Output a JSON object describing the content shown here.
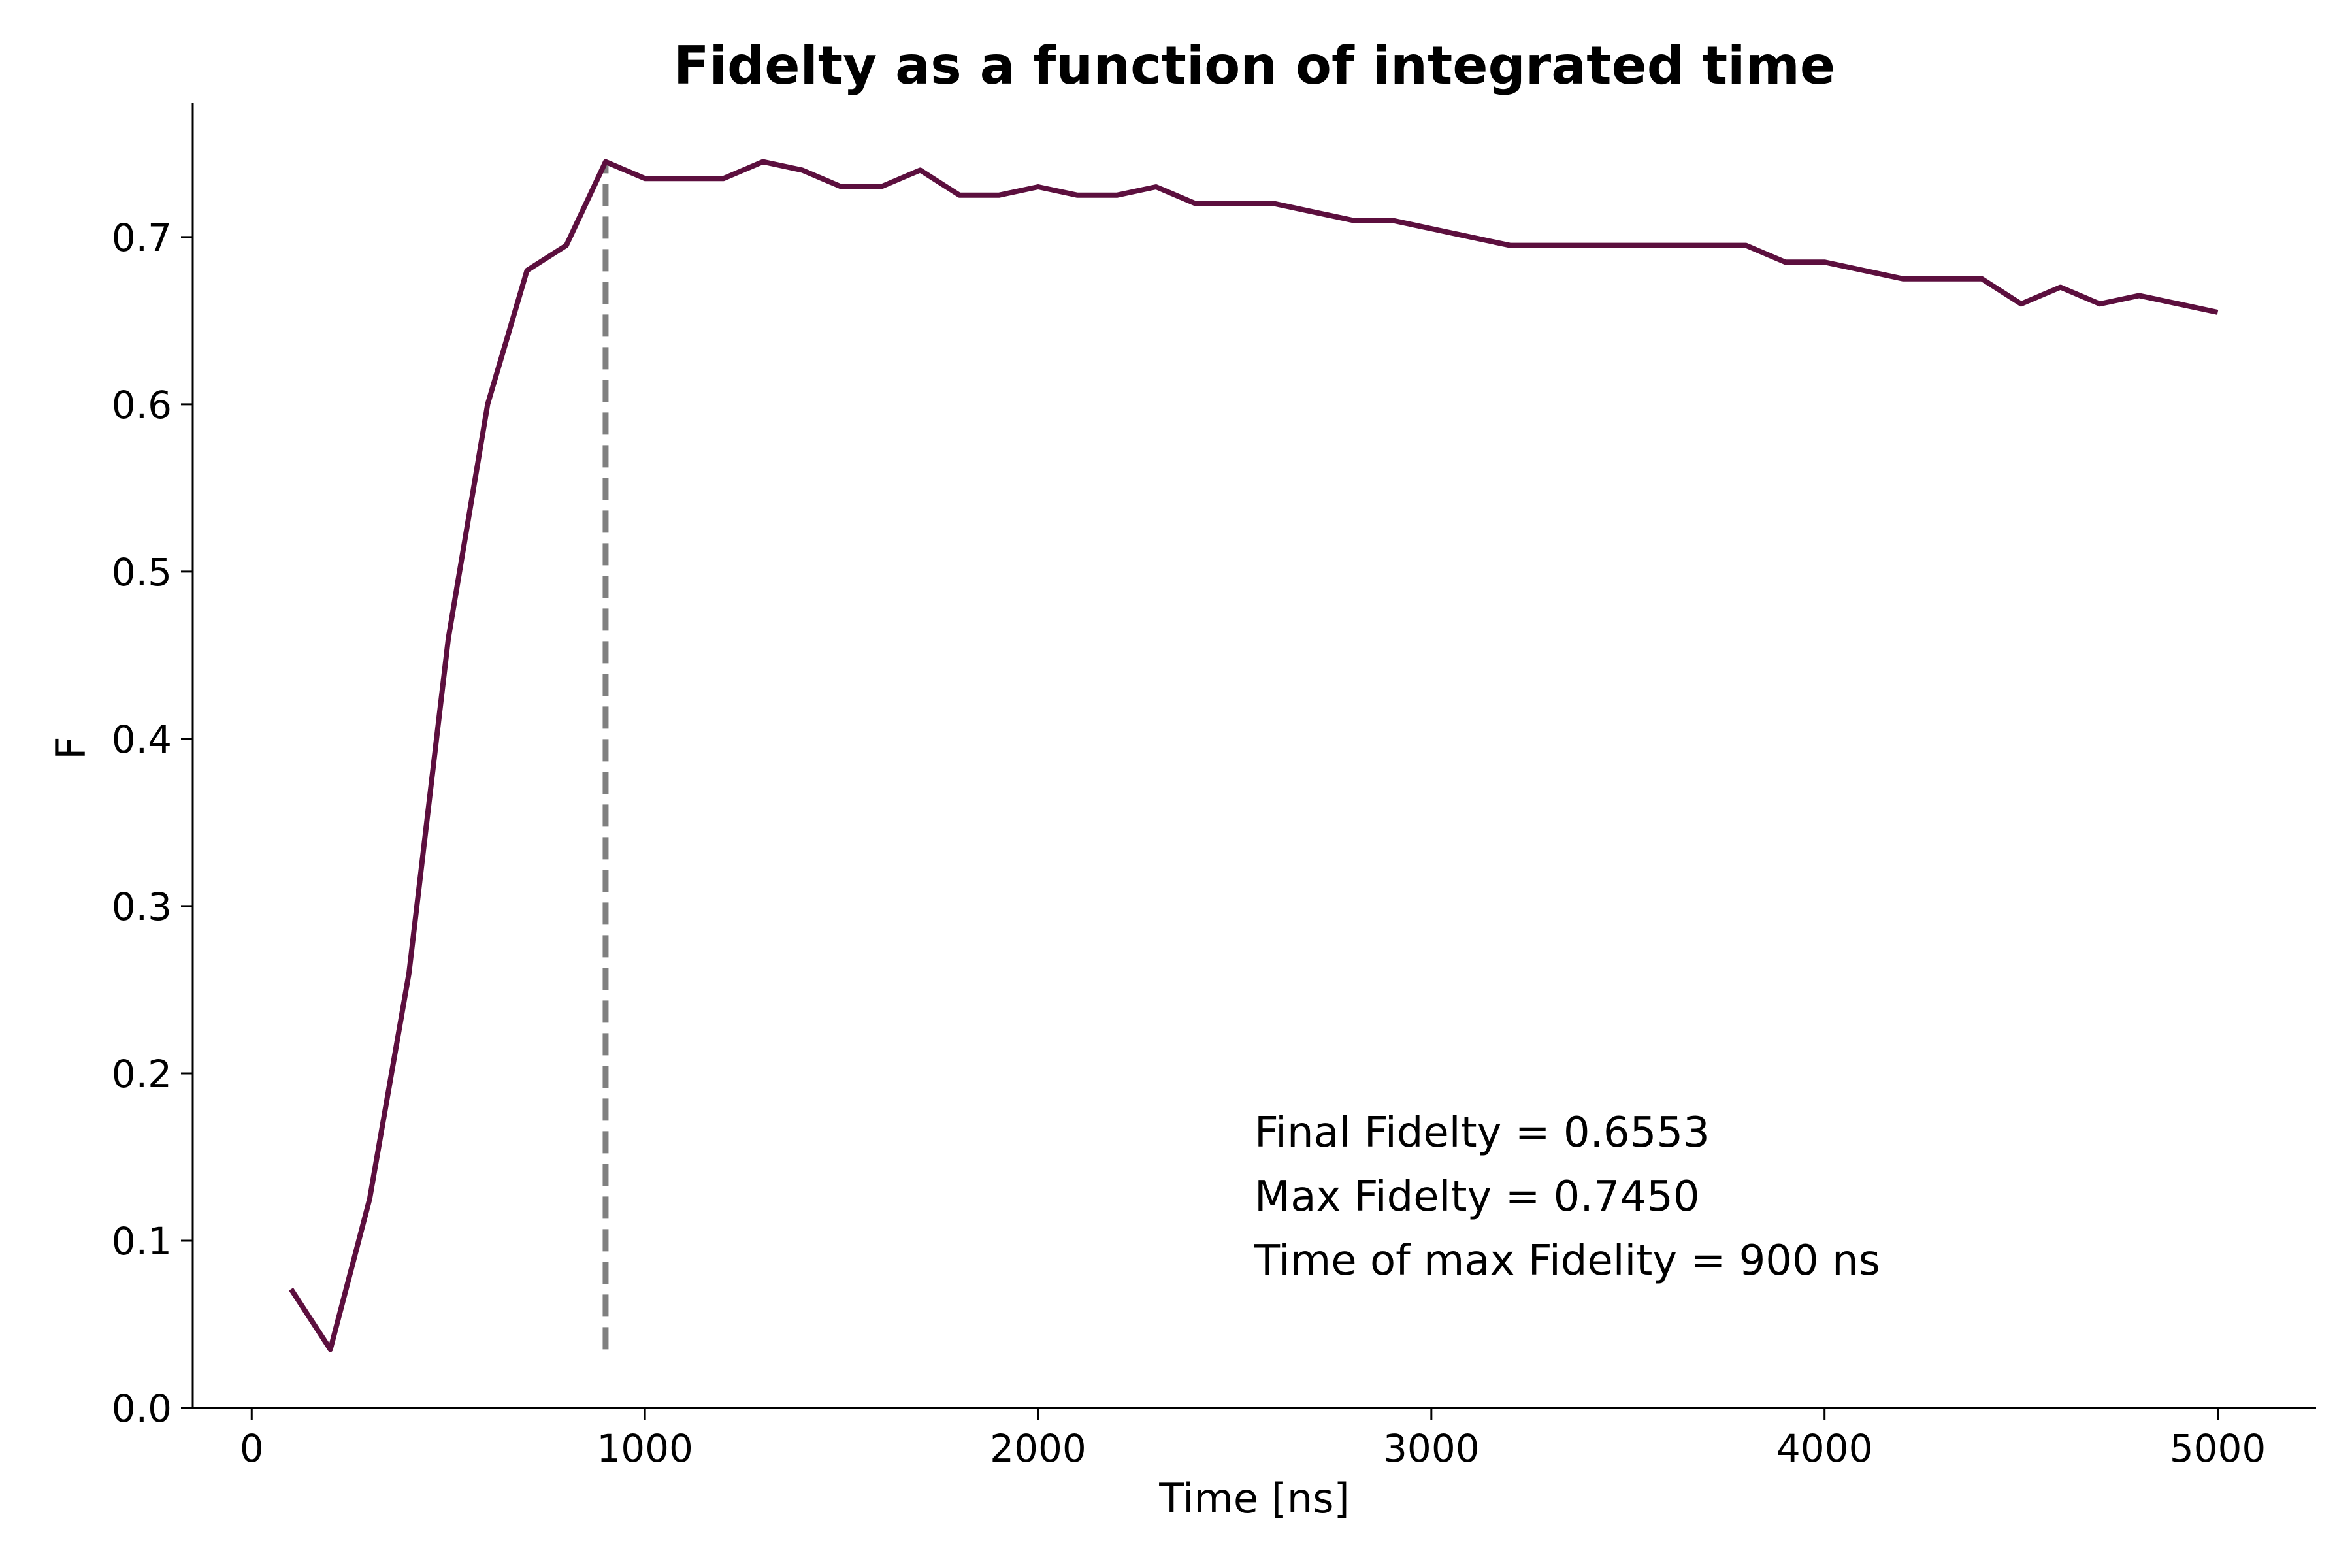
{
  "chart_data": {
    "type": "line",
    "title": "Fidelty as a function of integrated time",
    "xlabel": "Time  [ns]",
    "ylabel": "F",
    "xlim": [
      -150,
      5250
    ],
    "ylim": [
      0.0,
      0.78
    ],
    "xticks": [
      0,
      1000,
      2000,
      3000,
      4000,
      5000
    ],
    "yticks": [
      0.0,
      0.1,
      0.2,
      0.3,
      0.4,
      0.5,
      0.6,
      0.7
    ],
    "xtick_labels": [
      "0",
      "1000",
      "2000",
      "3000",
      "4000",
      "5000"
    ],
    "ytick_labels": [
      "0.0",
      "0.1",
      "0.2",
      "0.3",
      "0.4",
      "0.5",
      "0.6",
      "0.7"
    ],
    "grid": false,
    "line_color": "#5c0f3e",
    "vline": {
      "x": 900,
      "y_from": 0.035,
      "y_to": 0.745,
      "color": "#808080",
      "style": "dashed"
    },
    "annotations": [
      "Final Fidelty = 0.6553",
      "Max Fidelty = 0.7450",
      "Time of max Fidelity = 900 ns"
    ],
    "series": [
      {
        "x": [
          100,
          200,
          300,
          400,
          500,
          600,
          700,
          800,
          900,
          1000,
          1100,
          1200,
          1300,
          1400,
          1500,
          1600,
          1700,
          1800,
          1900,
          2000,
          2100,
          2200,
          2300,
          2400,
          2500,
          2600,
          2700,
          2800,
          2900,
          3000,
          3100,
          3200,
          3300,
          3400,
          3500,
          3600,
          3700,
          3800,
          3900,
          4000,
          4100,
          4200,
          4300,
          4400,
          4500,
          4600,
          4700,
          4800,
          4900,
          5000
        ],
        "values": [
          0.071,
          0.035,
          0.125,
          0.26,
          0.46,
          0.6,
          0.68,
          0.695,
          0.745,
          0.735,
          0.735,
          0.735,
          0.745,
          0.74,
          0.73,
          0.73,
          0.74,
          0.725,
          0.725,
          0.73,
          0.725,
          0.725,
          0.73,
          0.72,
          0.72,
          0.72,
          0.715,
          0.71,
          0.71,
          0.705,
          0.7,
          0.695,
          0.695,
          0.695,
          0.695,
          0.695,
          0.695,
          0.695,
          0.685,
          0.685,
          0.68,
          0.675,
          0.675,
          0.675,
          0.66,
          0.67,
          0.66,
          0.665,
          0.66,
          0.655
        ]
      }
    ]
  }
}
